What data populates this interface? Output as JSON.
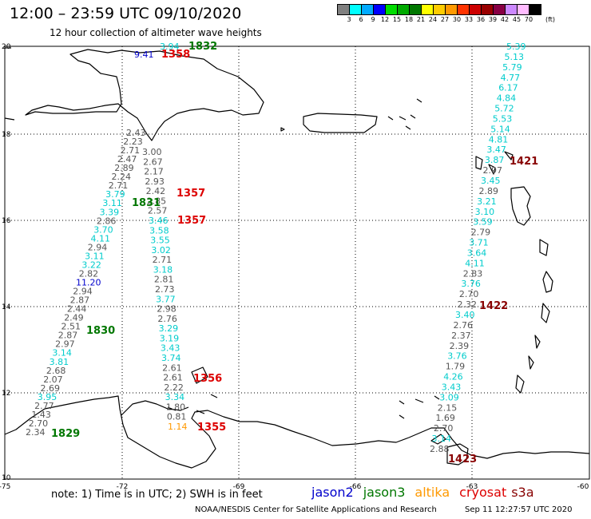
{
  "header": {
    "title": "12:00 – 23:59 UTC 09/10/2020",
    "subtitle": "12 hour collection of altimeter wave heights"
  },
  "scale_legend": {
    "unit": "(ft)",
    "labels": [
      "3",
      "6",
      "9",
      "12",
      "15",
      "18",
      "21",
      "24",
      "27",
      "30",
      "33",
      "36",
      "39",
      "42",
      "45",
      "70"
    ],
    "colors": [
      "#808080",
      "#00ffff",
      "#00aaff",
      "#0000ff",
      "#00dd00",
      "#00aa00",
      "#007700",
      "#ffff00",
      "#ffcc00",
      "#ff9900",
      "#ff3300",
      "#cc0000",
      "#990000",
      "#880044",
      "#cc88ff",
      "#ffbbff",
      "#000000"
    ]
  },
  "axes": {
    "lon_labels": [
      "-75",
      "-72",
      "-69",
      "-66",
      "-63",
      "-60"
    ],
    "lat_labels": [
      "20",
      "18",
      "16",
      "14",
      "12",
      "10"
    ]
  },
  "satellite_colors": {
    "jason2": "#0000cc",
    "jason3": "#007700",
    "altika": "#ff9900",
    "cryosat": "#dd0000",
    "s3a": "#880000",
    "gray": "#555555",
    "cyan": "#00cccc"
  },
  "tracks": {
    "top_labels": [
      {
        "t": "3.94",
        "c": "cyan"
      },
      {
        "t": "1832",
        "c": "jason3"
      },
      {
        "t": "9.41",
        "c": "jason2"
      },
      {
        "t": "1358",
        "c": "cryosat"
      }
    ],
    "track_a": [
      {
        "t": "2.43",
        "c": "gray"
      },
      {
        "t": "2.23",
        "c": "gray"
      },
      {
        "t": "2.71",
        "c": "gray"
      },
      {
        "t": "2.47",
        "c": "gray"
      },
      {
        "t": "2.89",
        "c": "gray"
      },
      {
        "t": "2.24",
        "c": "gray"
      },
      {
        "t": "2.71",
        "c": "gray"
      },
      {
        "t": "3.79",
        "c": "cyan"
      },
      {
        "t": "3.11",
        "c": "cyan"
      },
      {
        "t": "3.39",
        "c": "cyan"
      },
      {
        "t": "2.86",
        "c": "gray"
      },
      {
        "t": "3.70",
        "c": "cyan"
      },
      {
        "t": "4.11",
        "c": "cyan"
      },
      {
        "t": "2.94",
        "c": "gray"
      },
      {
        "t": "3.11",
        "c": "cyan"
      },
      {
        "t": "3.22",
        "c": "cyan"
      },
      {
        "t": "2.82",
        "c": "gray"
      },
      {
        "t": "11.20",
        "c": "jason2"
      },
      {
        "t": "2.94",
        "c": "gray"
      },
      {
        "t": "2.87",
        "c": "gray"
      },
      {
        "t": "2.44",
        "c": "gray"
      },
      {
        "t": "2.49",
        "c": "gray"
      },
      {
        "t": "2.51",
        "c": "gray"
      },
      {
        "t": "2.87",
        "c": "gray"
      },
      {
        "t": "2.97",
        "c": "gray"
      },
      {
        "t": "3.14",
        "c": "cyan"
      },
      {
        "t": "3.81",
        "c": "cyan"
      },
      {
        "t": "2.68",
        "c": "gray"
      },
      {
        "t": "2.07",
        "c": "gray"
      },
      {
        "t": "2.69",
        "c": "gray"
      },
      {
        "t": "3.95",
        "c": "cyan"
      },
      {
        "t": "2.77",
        "c": "gray"
      },
      {
        "t": "1.43",
        "c": "gray"
      },
      {
        "t": "2.70",
        "c": "gray"
      },
      {
        "t": "2.34",
        "c": "gray"
      }
    ],
    "track_b": [
      {
        "t": "3.00",
        "c": "gray"
      },
      {
        "t": "2.67",
        "c": "gray"
      },
      {
        "t": "2.17",
        "c": "gray"
      },
      {
        "t": "2.93",
        "c": "gray"
      },
      {
        "t": "2.42",
        "c": "gray"
      },
      {
        "t": "2.85",
        "c": "gray"
      },
      {
        "t": "2.57",
        "c": "gray"
      },
      {
        "t": "3.46",
        "c": "cyan"
      },
      {
        "t": "3.58",
        "c": "cyan"
      },
      {
        "t": "3.55",
        "c": "cyan"
      },
      {
        "t": "3.02",
        "c": "cyan"
      },
      {
        "t": "2.71",
        "c": "gray"
      },
      {
        "t": "3.18",
        "c": "cyan"
      },
      {
        "t": "2.81",
        "c": "gray"
      },
      {
        "t": "2.73",
        "c": "gray"
      },
      {
        "t": "3.77",
        "c": "cyan"
      },
      {
        "t": "2.98",
        "c": "gray"
      },
      {
        "t": "2.76",
        "c": "gray"
      },
      {
        "t": "3.29",
        "c": "cyan"
      },
      {
        "t": "3.19",
        "c": "cyan"
      },
      {
        "t": "3.43",
        "c": "cyan"
      },
      {
        "t": "3.74",
        "c": "cyan"
      },
      {
        "t": "2.61",
        "c": "gray"
      },
      {
        "t": "2.61",
        "c": "gray"
      },
      {
        "t": "2.22",
        "c": "gray"
      },
      {
        "t": "3.34",
        "c": "cyan"
      },
      {
        "t": "1.80",
        "c": "gray"
      },
      {
        "t": "0.81",
        "c": "gray"
      },
      {
        "t": "1.14",
        "c": "altika"
      }
    ],
    "track_c": [
      {
        "t": "5.39",
        "c": "cyan"
      },
      {
        "t": "5.13",
        "c": "cyan"
      },
      {
        "t": "5.79",
        "c": "cyan"
      },
      {
        "t": "4.77",
        "c": "cyan"
      },
      {
        "t": "6.17",
        "c": "cyan"
      },
      {
        "t": "4.84",
        "c": "cyan"
      },
      {
        "t": "5.72",
        "c": "cyan"
      },
      {
        "t": "5.53",
        "c": "cyan"
      },
      {
        "t": "5.14",
        "c": "cyan"
      },
      {
        "t": "4.81",
        "c": "cyan"
      },
      {
        "t": "3.47",
        "c": "cyan"
      },
      {
        "t": "3.87",
        "c": "cyan"
      },
      {
        "t": "2.97",
        "c": "gray"
      },
      {
        "t": "3.45",
        "c": "cyan"
      },
      {
        "t": "2.89",
        "c": "gray"
      },
      {
        "t": "3.21",
        "c": "cyan"
      },
      {
        "t": "3.10",
        "c": "cyan"
      },
      {
        "t": "3.59",
        "c": "cyan"
      },
      {
        "t": "2.79",
        "c": "gray"
      },
      {
        "t": "3.71",
        "c": "cyan"
      },
      {
        "t": "3.64",
        "c": "cyan"
      },
      {
        "t": "4.11",
        "c": "cyan"
      },
      {
        "t": "2.83",
        "c": "gray"
      },
      {
        "t": "3.76",
        "c": "cyan"
      },
      {
        "t": "2.70",
        "c": "gray"
      },
      {
        "t": "2.32",
        "c": "gray"
      },
      {
        "t": "3.40",
        "c": "cyan"
      },
      {
        "t": "2.76",
        "c": "gray"
      },
      {
        "t": "2.37",
        "c": "gray"
      },
      {
        "t": "2.39",
        "c": "gray"
      },
      {
        "t": "3.76",
        "c": "cyan"
      },
      {
        "t": "1.79",
        "c": "gray"
      },
      {
        "t": "4.26",
        "c": "cyan"
      },
      {
        "t": "3.43",
        "c": "cyan"
      },
      {
        "t": "3.09",
        "c": "cyan"
      },
      {
        "t": "2.15",
        "c": "gray"
      },
      {
        "t": "1.69",
        "c": "gray"
      },
      {
        "t": "2.70",
        "c": "gray"
      },
      {
        "t": "3.14",
        "c": "cyan"
      },
      {
        "t": "2.88",
        "c": "gray"
      }
    ],
    "time_labels": [
      {
        "t": "1357",
        "c": "cryosat"
      },
      {
        "t": "1831",
        "c": "jason3"
      },
      {
        "t": "1357",
        "c": "cryosat"
      },
      {
        "t": "1830",
        "c": "jason3"
      },
      {
        "t": "1356",
        "c": "cryosat"
      },
      {
        "t": "1355",
        "c": "cryosat"
      },
      {
        "t": "1829",
        "c": "jason3"
      },
      {
        "t": "1421",
        "c": "s3a"
      },
      {
        "t": "1422",
        "c": "s3a"
      },
      {
        "t": "1423",
        "c": "s3a"
      }
    ]
  },
  "footer": {
    "note": "note: 1) Time is in UTC; 2) SWH is in feet",
    "sat_names": [
      {
        "t": "jason2",
        "c": "jason2"
      },
      {
        "t": "jason3",
        "c": "jason3"
      },
      {
        "t": "altika",
        "c": "altika"
      },
      {
        "t": "cryosat",
        "c": "cryosat"
      },
      {
        "t": "s3a",
        "c": "s3a"
      }
    ],
    "credit": "NOAA/NESDIS Center for Satellite Applications and Research",
    "timestamp": "Sep 11 12:27:57 UTC 2020"
  }
}
